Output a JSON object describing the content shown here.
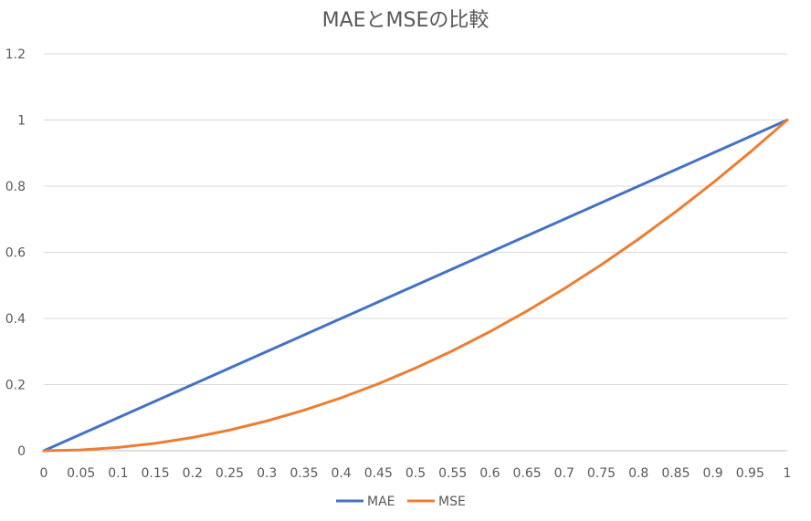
{
  "chart_data": {
    "type": "line",
    "title": "MAEとMSEの比較",
    "xlabel": "",
    "ylabel": "",
    "xlim": [
      0,
      1
    ],
    "ylim": [
      0,
      1.2
    ],
    "x_ticks": [
      "0",
      "0.05",
      "0.1",
      "0.15",
      "0.2",
      "0.25",
      "0.3",
      "0.35",
      "0.4",
      "0.45",
      "0.5",
      "0.55",
      "0.6",
      "0.65",
      "0.7",
      "0.75",
      "0.8",
      "0.85",
      "0.9",
      "0.95",
      "1"
    ],
    "y_ticks": [
      "0",
      "0.2",
      "0.4",
      "0.6",
      "0.8",
      "1",
      "1.2"
    ],
    "grid": true,
    "legend_position": "bottom",
    "x": [
      0,
      0.05,
      0.1,
      0.15,
      0.2,
      0.25,
      0.3,
      0.35,
      0.4,
      0.45,
      0.5,
      0.55,
      0.6,
      0.65,
      0.7,
      0.75,
      0.8,
      0.85,
      0.9,
      0.95,
      1
    ],
    "series": [
      {
        "name": "MAE",
        "color": "#4472C4",
        "values": [
          0,
          0.05,
          0.1,
          0.15,
          0.2,
          0.25,
          0.3,
          0.35,
          0.4,
          0.45,
          0.5,
          0.55,
          0.6,
          0.65,
          0.7,
          0.75,
          0.8,
          0.85,
          0.9,
          0.95,
          1
        ]
      },
      {
        "name": "MSE",
        "color": "#ED7D31",
        "values": [
          0,
          0.0025,
          0.01,
          0.0225,
          0.04,
          0.0625,
          0.09,
          0.1225,
          0.16,
          0.2025,
          0.25,
          0.3025,
          0.36,
          0.4225,
          0.49,
          0.5625,
          0.64,
          0.7225,
          0.81,
          0.9025,
          1
        ]
      }
    ],
    "gridline_color": "#D9D9D9",
    "axis_color": "#BFBFBF"
  }
}
